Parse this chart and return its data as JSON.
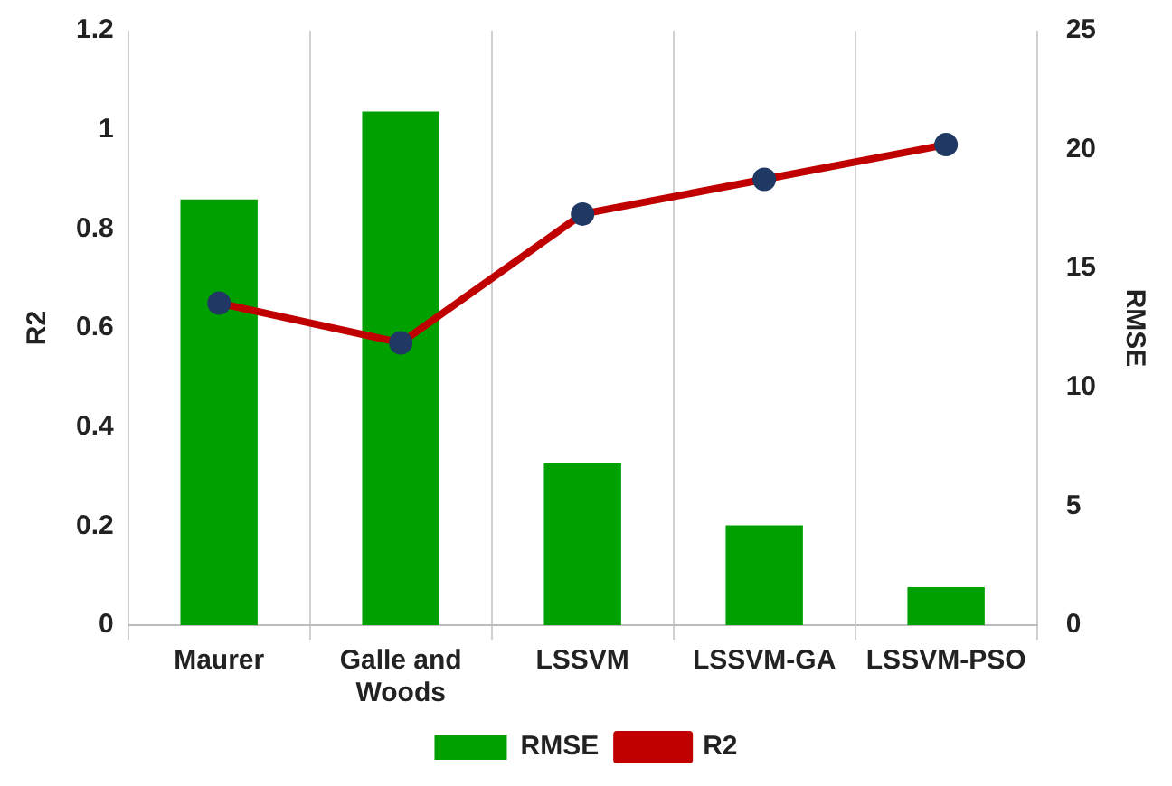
{
  "chart_data": {
    "type": "bar",
    "categories": [
      "Maurer",
      "Galle and Woods",
      "LSSVM",
      "LSSVM-GA",
      "LSSVM-PSO"
    ],
    "series": [
      {
        "name": "RMSE",
        "axis": "y2",
        "color": "#00a000",
        "values": [
          17.9,
          21.6,
          6.8,
          4.2,
          1.6
        ]
      },
      {
        "name": "R2",
        "type": "line",
        "axis": "y",
        "color": "#c00000",
        "values": [
          0.65,
          0.57,
          0.83,
          0.9,
          0.97
        ]
      }
    ],
    "ylabel": "R2",
    "y2label": "RMSE",
    "ylim": [
      0,
      1.2
    ],
    "yticks": [
      0,
      0.2,
      0.4,
      0.6,
      0.8,
      1,
      1.2
    ],
    "y2lim": [
      0,
      25
    ],
    "y2ticks": [
      0,
      5,
      10,
      15,
      20,
      25
    ],
    "grid": "x",
    "legend": "bottom",
    "marker": "circle",
    "line_style": "solid"
  }
}
